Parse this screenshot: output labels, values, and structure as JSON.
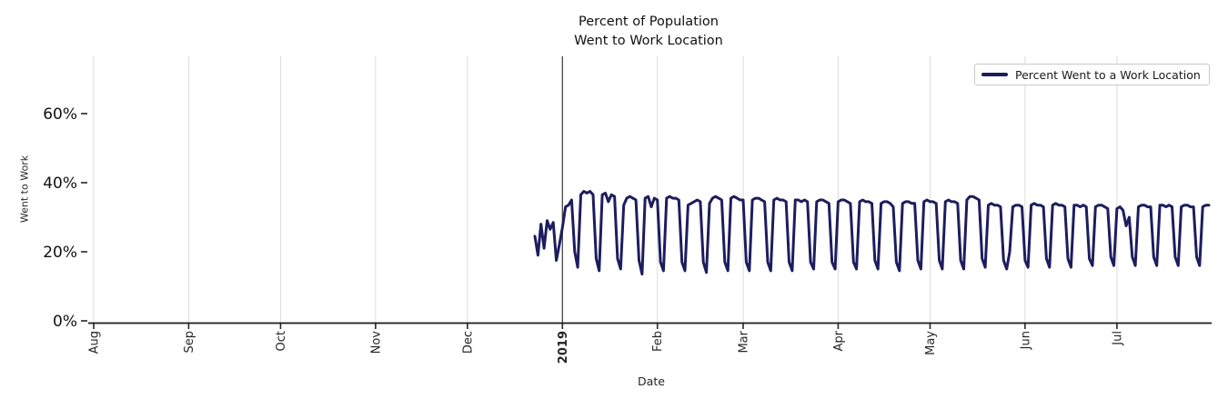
{
  "title": {
    "line1": "Percent of Population",
    "line2": "Went to Work Location"
  },
  "legend": {
    "label": "Percent Went to a Work Location"
  },
  "axes": {
    "x_label": "Date",
    "y_label": "Went to Work",
    "y_tick_labels": [
      "0%",
      "20%",
      "40%",
      "60%"
    ],
    "x_tick_labels": [
      "Aug",
      "Sep",
      "Oct",
      "Nov",
      "Dec",
      "2019",
      "Feb",
      "Mar",
      "Apr",
      "May",
      "Jun",
      "Jul"
    ]
  },
  "colors": {
    "line": "#1d1d5e",
    "grid": "#dcdcdc",
    "year_line": "#3c3c3c",
    "spine": "#1a1a1a",
    "tick": "#262626"
  },
  "chart_data": {
    "type": "line",
    "title": "Percent of Population Went to Work Location",
    "xlabel": "Date",
    "ylabel": "Went to Work",
    "series_name": "Percent Went to a Work Location",
    "unit": "percent",
    "x_axis_start": "2018-08-01",
    "x_axis_end": "2019-07-31",
    "data_start_date": "2018-12-23",
    "data_end_date": "2019-07-31",
    "x_tick_labels": [
      "Aug",
      "Sep",
      "Oct",
      "Nov",
      "Dec",
      "2019",
      "Feb",
      "Mar",
      "Apr",
      "May",
      "Jun",
      "Jul"
    ],
    "x_tick_month_day_offsets": [
      0,
      31,
      61,
      92,
      122,
      153,
      184,
      212,
      243,
      273,
      304,
      334
    ],
    "y_tick_values": [
      0,
      20,
      40,
      60
    ],
    "y_tick_labels": [
      "0%",
      "20%",
      "40%",
      "60%"
    ],
    "ylim": [
      0,
      76.5
    ],
    "grid": "vertical-monthly",
    "year_marker_day_offset": 153,
    "legend_position": "upper right",
    "data_start_day_offset": 144,
    "values": [
      24.5,
      19,
      28,
      21,
      29,
      26.5,
      28.5,
      17.5,
      22,
      27,
      33,
      33.5,
      35,
      20,
      15.5,
      36.5,
      37.5,
      37,
      37.5,
      36.5,
      18,
      14.5,
      36.5,
      37,
      34.5,
      36.5,
      36,
      18,
      15,
      33.5,
      35.5,
      36,
      35.5,
      35,
      17.5,
      13.5,
      35.5,
      36,
      33,
      35.5,
      35,
      17,
      14.5,
      35.5,
      36,
      35.5,
      35.5,
      35,
      17,
      14.5,
      33.5,
      34,
      34.5,
      35,
      34.5,
      17,
      14,
      34,
      35.5,
      36,
      35.5,
      35,
      17,
      14.5,
      35.5,
      36,
      35.5,
      35,
      35,
      17,
      14.5,
      35,
      35.5,
      35.5,
      35,
      34.5,
      17,
      14.5,
      35,
      35.5,
      35,
      35,
      34.5,
      17,
      14.5,
      35,
      35,
      34.5,
      35,
      34.5,
      17,
      15,
      34.5,
      35,
      35,
      34.5,
      34,
      17,
      15,
      34.5,
      35,
      35,
      34.5,
      34,
      17,
      15,
      34.5,
      35,
      34.5,
      34.5,
      34,
      17.5,
      15,
      34,
      34.5,
      34.5,
      34,
      33,
      17,
      14.5,
      34,
      34.5,
      34.5,
      34,
      34,
      17.5,
      15,
      34.5,
      35,
      34.5,
      34.5,
      34,
      17.5,
      15,
      34.5,
      35,
      34.5,
      34.5,
      34,
      17.5,
      15,
      35,
      36,
      36,
      35.5,
      35,
      18,
      15.5,
      33.5,
      34,
      33.5,
      33.5,
      33,
      17.5,
      15,
      20,
      33,
      33.5,
      33.5,
      33,
      17.5,
      15.5,
      33.5,
      34,
      33.5,
      33.5,
      33,
      18,
      15.5,
      33.5,
      34,
      33.5,
      33.5,
      33,
      18,
      15.5,
      33.5,
      33.5,
      33,
      33.5,
      33,
      18,
      16,
      33,
      33.5,
      33.5,
      33,
      32.5,
      18.5,
      16,
      32.5,
      33,
      32,
      27.5,
      30,
      18.5,
      16,
      33,
      33.5,
      33.5,
      33,
      33,
      18.5,
      16,
      33.5,
      33.5,
      33,
      33.5,
      33,
      18.5,
      16,
      33,
      33.5,
      33.5,
      33,
      33,
      18.5,
      16,
      33,
      33.5,
      33.5
    ]
  }
}
